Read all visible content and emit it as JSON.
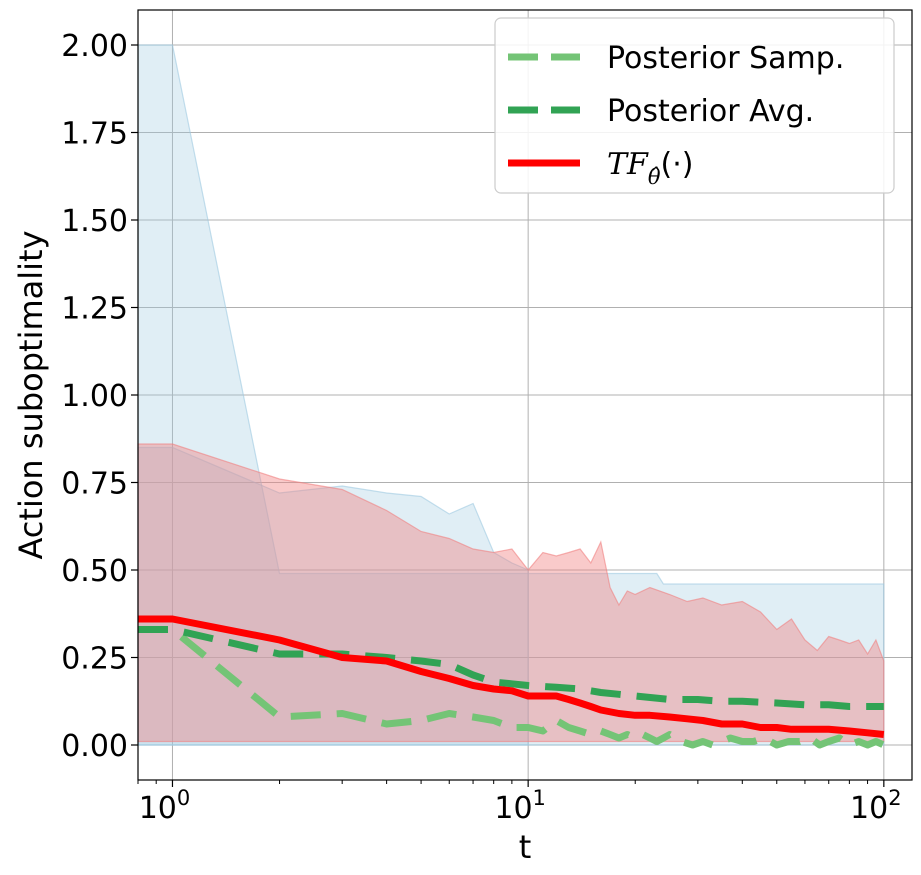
{
  "chart_data": {
    "type": "line",
    "xlabel": "t",
    "ylabel": "Action suboptimality",
    "xscale": "log",
    "xlim": [
      0.8,
      120
    ],
    "ylim": [
      -0.1,
      2.1
    ],
    "x_ticks": [
      1,
      10,
      100
    ],
    "x_tick_labels": [
      {
        "base": "10",
        "exp": "0"
      },
      {
        "base": "10",
        "exp": "1"
      },
      {
        "base": "10",
        "exp": "2"
      }
    ],
    "y_ticks": [
      0,
      0.25,
      0.5,
      0.75,
      1.0,
      1.25,
      1.5,
      1.75,
      2.0
    ],
    "y_tick_labels": [
      "0.00",
      "0.25",
      "0.50",
      "0.75",
      "1.00",
      "1.25",
      "1.50",
      "1.75",
      "2.00"
    ],
    "grid": true,
    "legend_position": "top-right",
    "colors": {
      "posterior_samp": "#74c476",
      "posterior_avg": "#31a354",
      "tf": "#ff0000",
      "band_blue": "#9ecae1",
      "band_red": "#f08080"
    },
    "series": [
      {
        "name": "Posterior Samp.",
        "style": "dashed",
        "x": [
          0.8,
          1,
          2,
          3,
          4,
          5,
          6,
          7,
          8,
          9,
          10,
          11,
          12,
          13,
          14,
          15,
          16,
          17,
          18,
          19,
          20,
          21,
          22,
          23,
          24,
          25,
          27,
          29,
          31,
          33,
          35,
          37,
          40,
          43,
          46,
          50,
          54,
          58,
          62,
          66,
          70,
          75,
          80,
          85,
          90,
          95,
          100
        ],
        "values": [
          0.33,
          0.33,
          0.08,
          0.09,
          0.06,
          0.07,
          0.09,
          0.08,
          0.07,
          0.05,
          0.05,
          0.04,
          0.07,
          0.05,
          0.04,
          0.03,
          0.04,
          0.03,
          0.02,
          0.03,
          0.02,
          0.03,
          0.02,
          0.01,
          0.02,
          0.03,
          0.01,
          0.0,
          0.01,
          0.0,
          0.01,
          0.02,
          0.01,
          0.01,
          0.02,
          0.0,
          0.01,
          0.01,
          0.02,
          0.0,
          0.01,
          0.02,
          0.0,
          0.01,
          0.0,
          0.01,
          0.0
        ]
      },
      {
        "name": "Posterior Avg.",
        "style": "dashed",
        "x": [
          0.8,
          1,
          2,
          3,
          4,
          5,
          6,
          7,
          8,
          9,
          10,
          12,
          14,
          16,
          18,
          20,
          25,
          30,
          35,
          40,
          50,
          60,
          70,
          80,
          90,
          100
        ],
        "values": [
          0.33,
          0.33,
          0.26,
          0.26,
          0.25,
          0.24,
          0.23,
          0.2,
          0.18,
          0.175,
          0.17,
          0.165,
          0.16,
          0.15,
          0.145,
          0.14,
          0.13,
          0.13,
          0.125,
          0.125,
          0.12,
          0.115,
          0.115,
          0.11,
          0.11,
          0.11
        ]
      },
      {
        "name": "TF_θ̂(·)",
        "style": "solid",
        "x": [
          0.8,
          1,
          2,
          3,
          4,
          5,
          6,
          7,
          8,
          9,
          10,
          11,
          12,
          13,
          14,
          15,
          16,
          18,
          20,
          22,
          25,
          28,
          31,
          35,
          40,
          45,
          50,
          55,
          60,
          70,
          80,
          90,
          100
        ],
        "values": [
          0.36,
          0.36,
          0.3,
          0.25,
          0.24,
          0.21,
          0.19,
          0.17,
          0.16,
          0.155,
          0.14,
          0.14,
          0.14,
          0.13,
          0.12,
          0.11,
          0.1,
          0.09,
          0.085,
          0.085,
          0.08,
          0.075,
          0.07,
          0.06,
          0.06,
          0.05,
          0.05,
          0.045,
          0.045,
          0.045,
          0.04,
          0.035,
          0.03
        ]
      }
    ],
    "bands": [
      {
        "color_key": "band_blue",
        "x": [
          0.8,
          1,
          2,
          3,
          4,
          5,
          6,
          7,
          8,
          9,
          10,
          12,
          14,
          15,
          16,
          17,
          18,
          19,
          20,
          21,
          22,
          23,
          24,
          25,
          30,
          40,
          60,
          80,
          100
        ],
        "upper": [
          2.0,
          2.0,
          0.49,
          0.49,
          0.49,
          0.49,
          0.49,
          0.49,
          0.49,
          0.49,
          0.49,
          0.49,
          0.49,
          0.49,
          0.49,
          0.49,
          0.49,
          0.49,
          0.49,
          0.49,
          0.49,
          0.49,
          0.46,
          0.46,
          0.46,
          0.46,
          0.46,
          0.46,
          0.46
        ],
        "lower": [
          0.0,
          0.0,
          0.0,
          0.0,
          0.0,
          0.0,
          0.0,
          0.0,
          0.0,
          0.0,
          0.0,
          0.0,
          0.0,
          0.0,
          0.0,
          0.0,
          0.0,
          0.0,
          0.0,
          0.0,
          0.0,
          0.0,
          0.0,
          0.0,
          0.0,
          0.0,
          0.0,
          0.0,
          0.0
        ]
      },
      {
        "color_key": "band_blue",
        "x": [
          0.8,
          1,
          2,
          3,
          4,
          5,
          6,
          7,
          8,
          9,
          10
        ],
        "upper": [
          0.85,
          0.85,
          0.72,
          0.74,
          0.72,
          0.71,
          0.66,
          0.69,
          0.55,
          0.52,
          0.5
        ],
        "lower": [
          0.0,
          0.0,
          0.0,
          0.0,
          0.0,
          0.0,
          0.0,
          0.0,
          0.0,
          0.0,
          0.0
        ]
      },
      {
        "color_key": "band_red",
        "x": [
          0.8,
          1,
          2,
          3,
          4,
          5,
          6,
          7,
          8,
          9,
          10,
          11,
          12,
          13,
          14,
          15,
          16,
          17,
          18,
          19,
          20,
          22,
          25,
          28,
          31,
          35,
          40,
          45,
          50,
          55,
          60,
          65,
          70,
          75,
          80,
          85,
          90,
          95,
          100
        ],
        "upper": [
          0.86,
          0.86,
          0.76,
          0.73,
          0.67,
          0.61,
          0.59,
          0.56,
          0.55,
          0.56,
          0.5,
          0.55,
          0.54,
          0.55,
          0.56,
          0.52,
          0.58,
          0.45,
          0.4,
          0.44,
          0.43,
          0.45,
          0.43,
          0.41,
          0.42,
          0.4,
          0.41,
          0.38,
          0.33,
          0.36,
          0.3,
          0.27,
          0.31,
          0.3,
          0.29,
          0.3,
          0.26,
          0.3,
          0.24
        ],
        "lower": [
          0.01,
          0.01,
          0.01,
          0.01,
          0.01,
          0.01,
          0.01,
          0.01,
          0.01,
          0.01,
          0.01,
          0.01,
          0.01,
          0.01,
          0.01,
          0.01,
          0.01,
          0.01,
          0.01,
          0.01,
          0.01,
          0.01,
          0.01,
          0.01,
          0.01,
          0.01,
          0.01,
          0.01,
          0.01,
          0.01,
          0.01,
          0.01,
          0.01,
          0.01,
          0.01,
          0.01,
          0.01,
          0.01,
          0.01
        ]
      }
    ]
  }
}
